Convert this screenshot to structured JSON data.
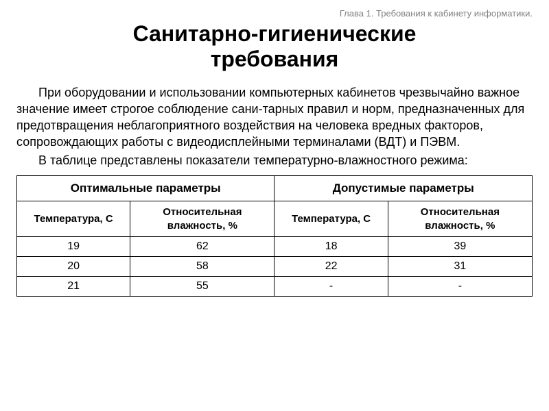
{
  "chapter_header": "Глава 1. Требования к кабинету информатики.",
  "title_line1": "Санитарно-гигиенические",
  "title_line2": "требования",
  "paragraph1": "При оборудовании и использовании компьютерных кабинетов чрезвычайно важное значение имеет строгое соблюдение сани-тарных правил и норм, предназначенных для предотвращения неблагоприятного воздействия на человека вредных факторов, сопровождающих работы с видеодисплейными терминалами (ВДТ) и ПЭВМ.",
  "paragraph2": "В таблице представлены показатели температурно-влажностного режима:",
  "table": {
    "group_headers": [
      "Оптимальные параметры",
      "Допустимые параметры"
    ],
    "sub_headers": [
      "Температура, С",
      "Относительная влажность, %",
      "Температура, С",
      "Относительная влажность, %"
    ],
    "rows": [
      [
        "19",
        "62",
        "18",
        "39"
      ],
      [
        "20",
        "58",
        "22",
        "31"
      ],
      [
        "21",
        "55",
        "-",
        "-"
      ]
    ],
    "column_widths": [
      "22%",
      "28%",
      "22%",
      "28%"
    ],
    "border_color": "#000000",
    "background_color": "#ffffff"
  },
  "colors": {
    "text": "#000000",
    "chapter_text": "#808080",
    "background": "#ffffff"
  },
  "typography": {
    "title_fontsize": 32,
    "body_fontsize": 18,
    "chapter_fontsize": 13,
    "table_header_fontsize": 17,
    "table_subheader_fontsize": 15,
    "table_cell_fontsize": 16
  }
}
